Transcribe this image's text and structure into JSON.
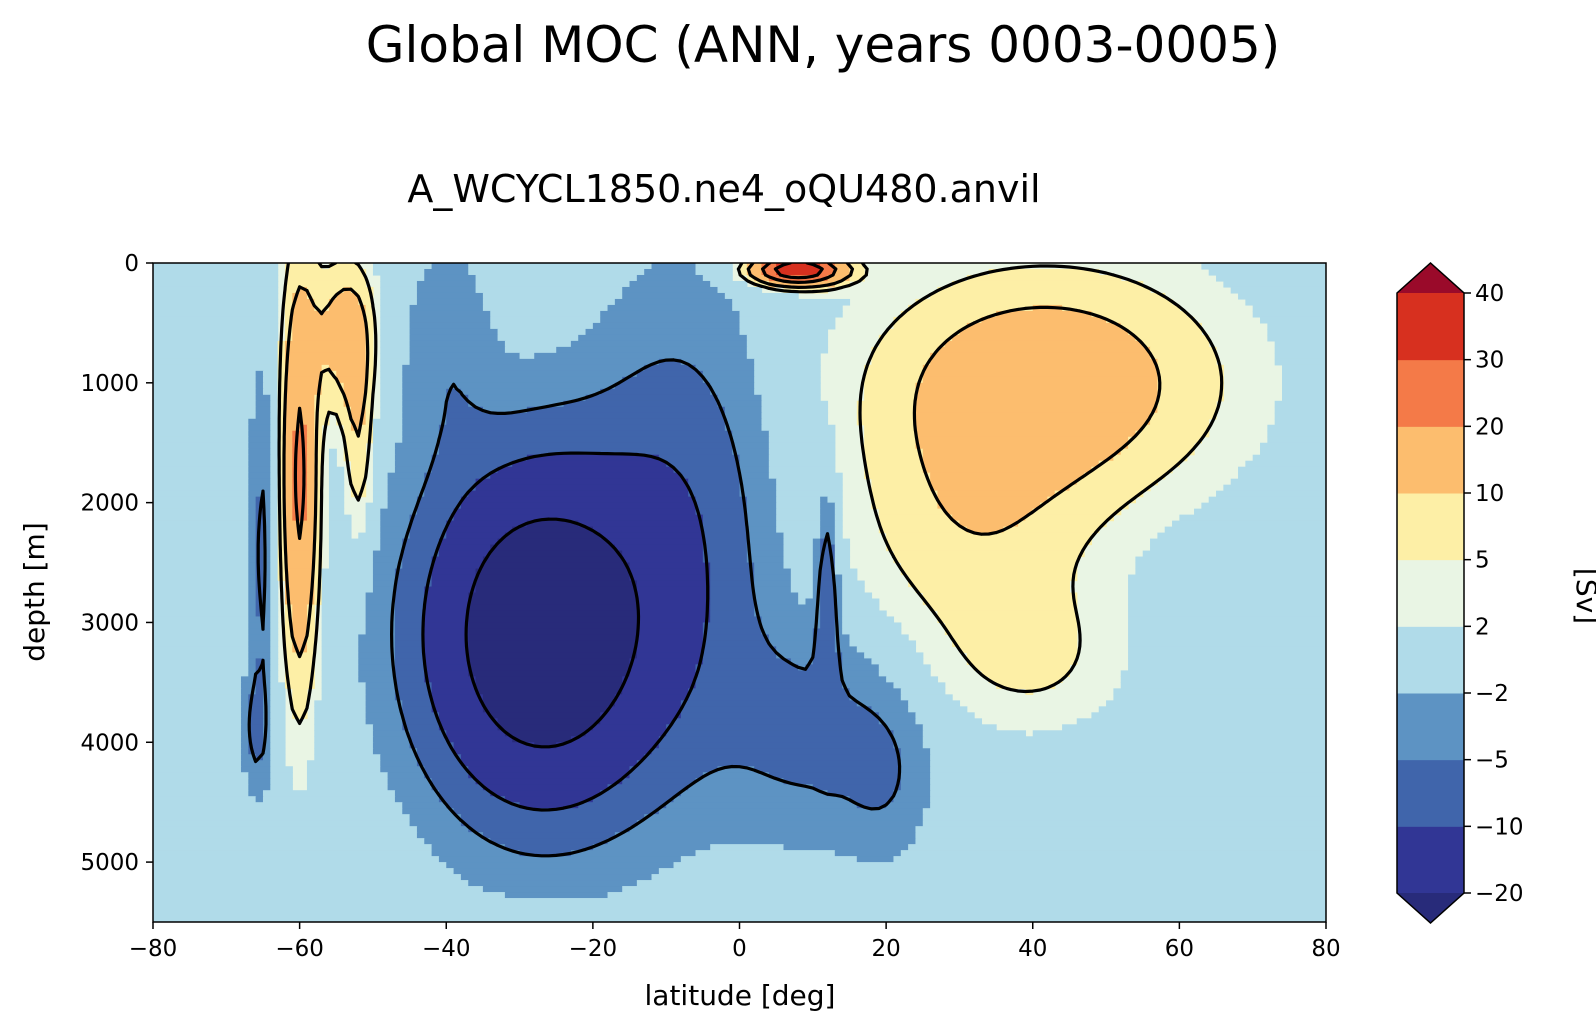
{
  "chart_data": {
    "type": "contourf",
    "suptitle": "Global MOC (ANN, years 0003-0005)",
    "title": "A_WCYCL1850.ne4_oQU480.anvil",
    "xlabel": "latitude [deg]",
    "ylabel": "depth [m]",
    "xlim": [
      -80,
      80
    ],
    "ylim": [
      5500,
      0
    ],
    "y_inverted": true,
    "xticks": [
      -80,
      -60,
      -40,
      -20,
      0,
      20,
      40,
      60,
      80
    ],
    "xtick_labels": [
      "−80",
      "−60",
      "−40",
      "−20",
      "0",
      "20",
      "40",
      "60",
      "80"
    ],
    "yticks": [
      0,
      1000,
      2000,
      3000,
      4000,
      5000
    ],
    "ytick_labels": [
      "0",
      "1000",
      "2000",
      "3000",
      "4000",
      "5000"
    ],
    "colorbar": {
      "label": "[Sv]",
      "levels": [
        -20,
        -10,
        -5,
        -2,
        2,
        5,
        10,
        20,
        30,
        40
      ],
      "tick_labels": [
        "−20",
        "−10",
        "−5",
        "−2",
        "2",
        "5",
        "10",
        "20",
        "30",
        "40"
      ],
      "extend": "both",
      "colors": [
        "#313695",
        "#4065ab",
        "#5d93c3",
        "#b0dbe9",
        "#e9f5e4",
        "#fdefa6",
        "#fcbd6e",
        "#f47a48",
        "#d7301f",
        "#b7192b"
      ],
      "under_color": "#282b7a",
      "over_color": "#9a0a2a"
    },
    "contour_lines": [
      -20,
      -10,
      -5,
      5,
      10,
      20,
      30
    ],
    "grid": false,
    "legend": "none"
  }
}
